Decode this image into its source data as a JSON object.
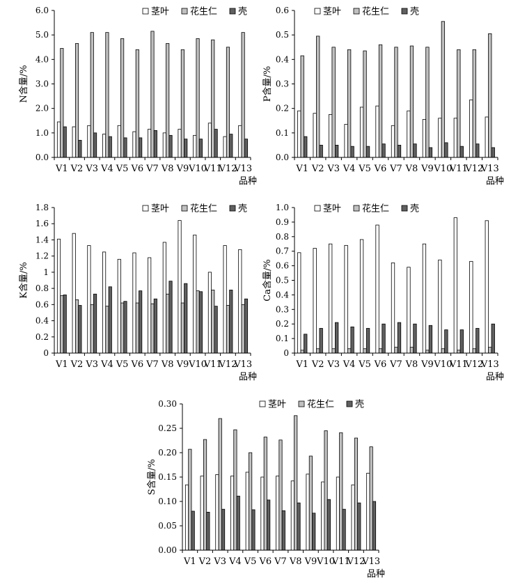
{
  "chart_data": [
    {
      "id": "N",
      "type": "bar",
      "ylabel": "N含量/%",
      "xlabel": "品种",
      "ylim": [
        0,
        6
      ],
      "yticks": [
        "0.0",
        "1.0",
        "2.0",
        "3.0",
        "4.0",
        "5.0",
        "6.0"
      ],
      "categories": [
        "V1",
        "V2",
        "V3",
        "V4",
        "V5",
        "V6",
        "V7",
        "V8",
        "V9",
        "V10",
        "V11",
        "V12",
        "V13"
      ],
      "legend_position": "top-right",
      "series": [
        {
          "name": "茎叶",
          "color": "#ffffff",
          "values": [
            1.45,
            1.25,
            1.3,
            0.95,
            1.3,
            1.05,
            1.15,
            1.0,
            1.15,
            0.9,
            1.4,
            0.85,
            1.3
          ]
        },
        {
          "name": "花生仁",
          "color": "#c0c0c0",
          "values": [
            4.45,
            4.65,
            5.1,
            5.1,
            4.85,
            4.4,
            5.15,
            4.65,
            4.4,
            4.85,
            4.8,
            4.5,
            5.1
          ]
        },
        {
          "name": "壳",
          "color": "#606060",
          "values": [
            1.25,
            0.7,
            1.0,
            0.85,
            0.8,
            0.8,
            1.1,
            0.9,
            0.75,
            0.75,
            1.15,
            0.95,
            0.75
          ]
        }
      ]
    },
    {
      "id": "P",
      "type": "bar",
      "ylabel": "P含量/%",
      "xlabel": "品种",
      "ylim": [
        0,
        0.6
      ],
      "yticks": [
        "0.0",
        "0.1",
        "0.2",
        "0.3",
        "0.4",
        "0.5",
        "0.6"
      ],
      "categories": [
        "V1",
        "V2",
        "V3",
        "V4",
        "V5",
        "V6",
        "V7",
        "V8",
        "V9",
        "V10",
        "V11",
        "V12",
        "V13"
      ],
      "legend_position": "top-right",
      "series": [
        {
          "name": "茎叶",
          "color": "#ffffff",
          "values": [
            0.19,
            0.18,
            0.175,
            0.135,
            0.205,
            0.21,
            0.13,
            0.19,
            0.155,
            0.16,
            0.16,
            0.235,
            0.165
          ]
        },
        {
          "name": "花生仁",
          "color": "#c0c0c0",
          "values": [
            0.415,
            0.495,
            0.45,
            0.44,
            0.435,
            0.46,
            0.45,
            0.455,
            0.45,
            0.555,
            0.44,
            0.44,
            0.505
          ]
        },
        {
          "name": "壳",
          "color": "#606060",
          "values": [
            0.085,
            0.05,
            0.05,
            0.045,
            0.045,
            0.055,
            0.05,
            0.055,
            0.04,
            0.06,
            0.045,
            0.055,
            0.04
          ]
        }
      ]
    },
    {
      "id": "K",
      "type": "bar",
      "ylabel": "K含量/%",
      "xlabel": "品种",
      "ylim": [
        0,
        1.8
      ],
      "yticks": [
        "0",
        "0.2",
        "0.4",
        "0.6",
        "0.8",
        "1",
        "1.2",
        "1.4",
        "1.6",
        "1.8"
      ],
      "categories": [
        "V1",
        "V2",
        "V3",
        "V4",
        "V5",
        "V6",
        "V7",
        "V8",
        "V9",
        "V10",
        "V11",
        "V12",
        "V13"
      ],
      "legend_position": "top-right",
      "series": [
        {
          "name": "茎叶",
          "color": "#ffffff",
          "values": [
            1.41,
            1.48,
            1.33,
            1.25,
            1.16,
            1.24,
            1.18,
            1.37,
            1.64,
            1.46,
            1.0,
            1.33,
            1.28
          ]
        },
        {
          "name": "花生仁",
          "color": "#c0c0c0",
          "values": [
            0.71,
            0.66,
            0.6,
            0.58,
            0.62,
            0.62,
            0.61,
            0.73,
            0.62,
            0.77,
            0.78,
            0.59,
            0.6
          ]
        },
        {
          "name": "壳",
          "color": "#606060",
          "values": [
            0.72,
            0.59,
            0.73,
            0.82,
            0.64,
            0.77,
            0.67,
            0.89,
            0.86,
            0.76,
            0.58,
            0.78,
            0.67
          ]
        }
      ]
    },
    {
      "id": "Ca",
      "type": "bar",
      "ylabel": "Ca含量/%",
      "xlabel": "品种",
      "ylim": [
        0,
        1
      ],
      "yticks": [
        "0",
        "0.1",
        "0.2",
        "0.3",
        "0.4",
        "0.5",
        "0.6",
        "0.7",
        "0.8",
        "0.9",
        "1.0"
      ],
      "categories": [
        "V1",
        "V2",
        "V3",
        "V4",
        "V5",
        "V6",
        "V7",
        "V8",
        "V9",
        "V10",
        "V11",
        "V12",
        "V13"
      ],
      "legend_position": "top-right",
      "series": [
        {
          "name": "茎叶",
          "color": "#ffffff",
          "values": [
            0.69,
            0.72,
            0.75,
            0.74,
            0.78,
            0.88,
            0.62,
            0.59,
            0.75,
            0.64,
            0.93,
            0.63,
            0.91
          ]
        },
        {
          "name": "花生仁",
          "color": "#c0c0c0",
          "values": [
            0.02,
            0.03,
            0.03,
            0.03,
            0.03,
            0.03,
            0.04,
            0.04,
            0.02,
            0.03,
            0.02,
            0.03,
            0.04
          ]
        },
        {
          "name": "壳",
          "color": "#606060",
          "values": [
            0.13,
            0.17,
            0.21,
            0.18,
            0.17,
            0.2,
            0.21,
            0.2,
            0.19,
            0.16,
            0.16,
            0.17,
            0.2
          ]
        }
      ]
    },
    {
      "id": "S",
      "type": "bar",
      "ylabel": "S含量/%",
      "xlabel": "品种",
      "ylim": [
        0,
        0.3
      ],
      "yticks": [
        "0.00",
        "0.05",
        "0.10",
        "0.15",
        "0.20",
        "0.25",
        "0.30"
      ],
      "categories": [
        "V1",
        "V2",
        "V3",
        "V4",
        "V5",
        "V6",
        "V7",
        "V8",
        "V9",
        "V10",
        "V11",
        "V12",
        "V13"
      ],
      "legend_position": "top-right",
      "series": [
        {
          "name": "茎叶",
          "color": "#ffffff",
          "values": [
            0.134,
            0.152,
            0.155,
            0.152,
            0.16,
            0.15,
            0.152,
            0.142,
            0.156,
            0.14,
            0.15,
            0.134,
            0.158
          ]
        },
        {
          "name": "花生仁",
          "color": "#c0c0c0",
          "values": [
            0.207,
            0.227,
            0.27,
            0.247,
            0.2,
            0.232,
            0.226,
            0.276,
            0.193,
            0.245,
            0.241,
            0.23,
            0.212
          ]
        },
        {
          "name": "壳",
          "color": "#606060",
          "values": [
            0.08,
            0.078,
            0.084,
            0.111,
            0.083,
            0.103,
            0.081,
            0.097,
            0.076,
            0.104,
            0.084,
            0.097,
            0.1
          ]
        }
      ]
    }
  ]
}
